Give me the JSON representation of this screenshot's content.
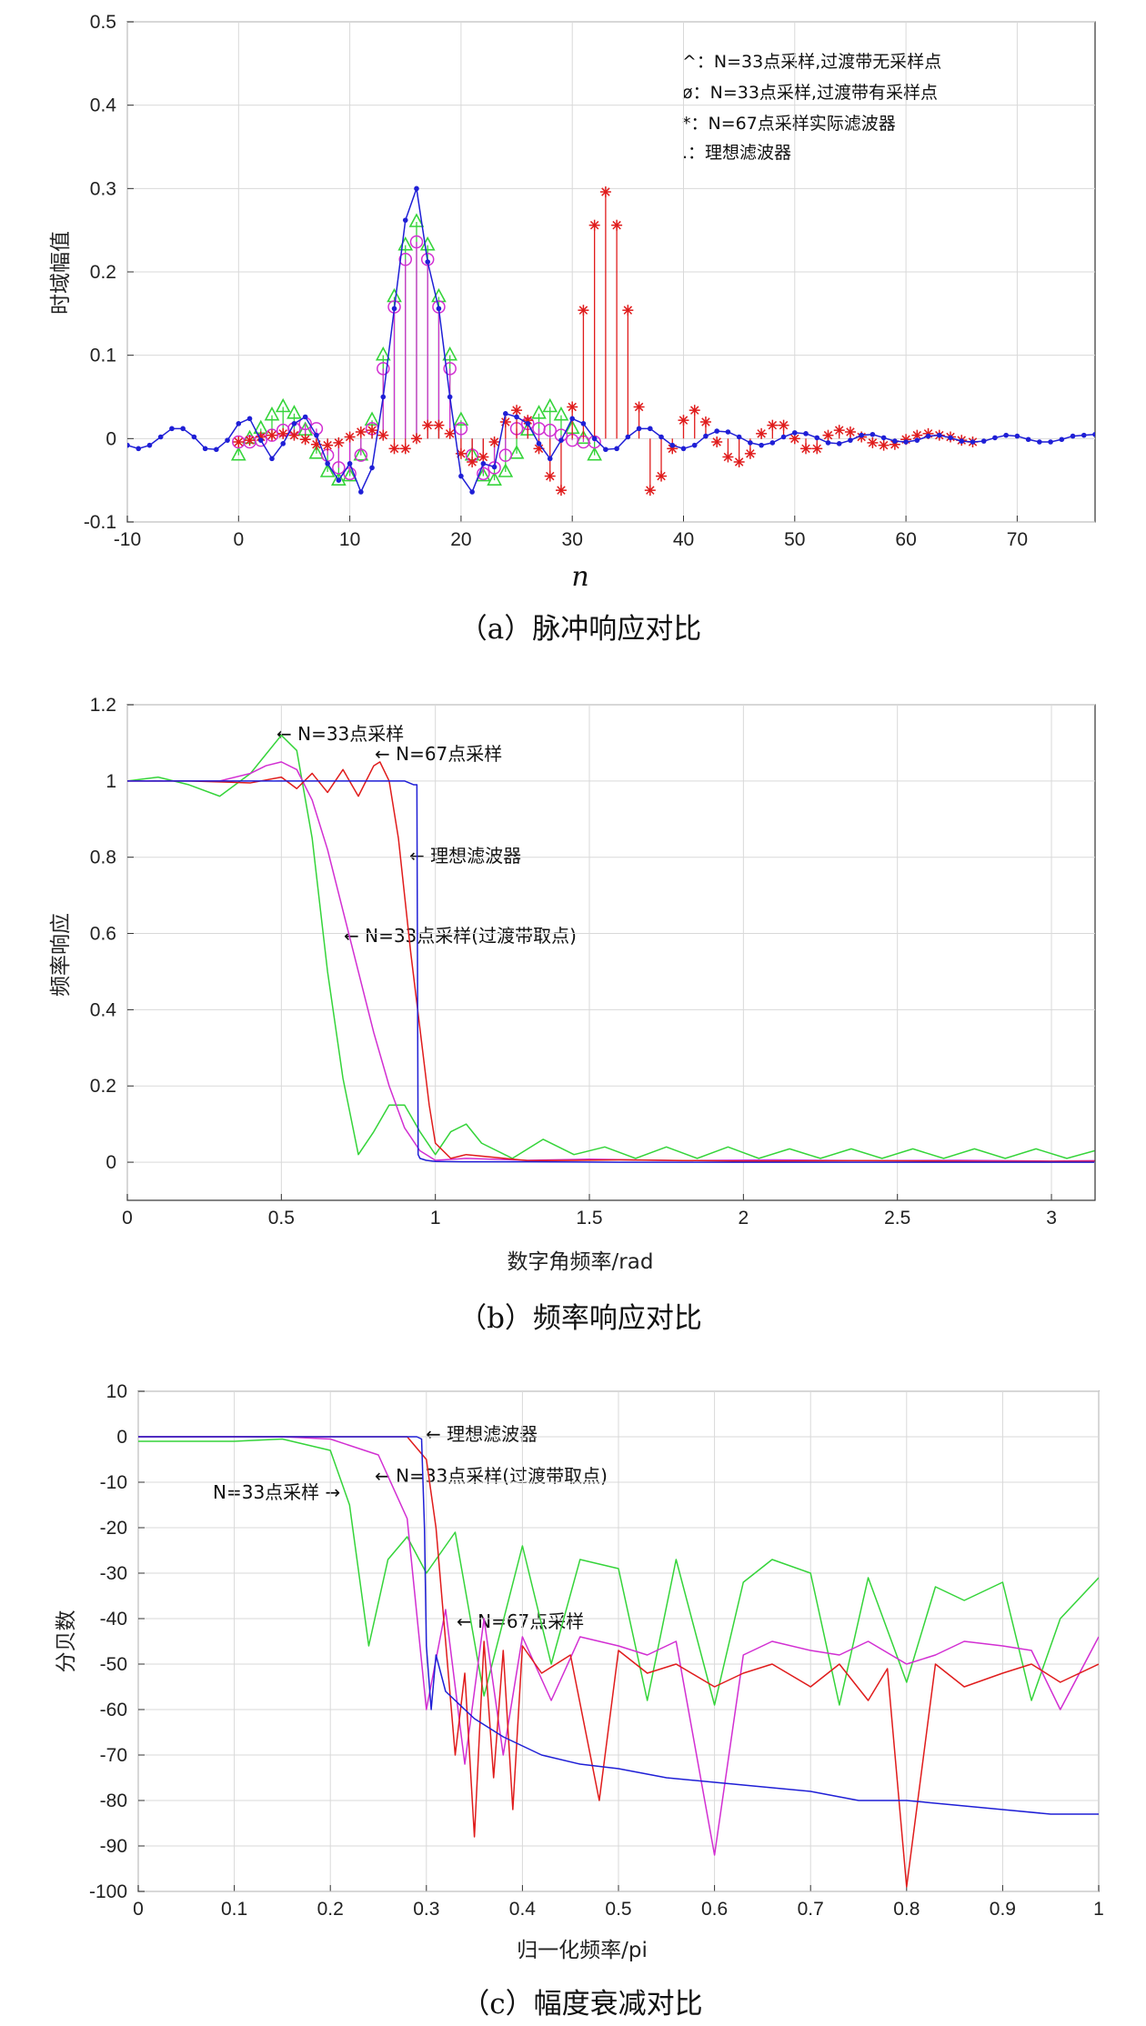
{
  "colors": {
    "blue": "#1f1fd6",
    "red": "#e01c1c",
    "green": "#35d43a",
    "magenta": "#d22fd2",
    "grid": "#d9d9d9",
    "axis": "#333333"
  },
  "chart_data": [
    {
      "type": "line",
      "panel": "a",
      "caption": "（a）脉冲响应对比",
      "xlabel": "n",
      "ylabel": "时域幅值",
      "xlim": [
        -10,
        77
      ],
      "ylim": [
        -0.1,
        0.5
      ],
      "xticks": [
        -10,
        0,
        10,
        20,
        30,
        40,
        50,
        60,
        70
      ],
      "yticks": [
        -0.1,
        0,
        0.1,
        0.2,
        0.3,
        0.4,
        0.5
      ],
      "grid": true,
      "legend_position": "top-right",
      "legend": [
        "^：N=33点采样,过渡带无采样点",
        "ø：N=33点采样,过渡带有采样点",
        "*：N=67点采样实际滤波器",
        ".：理想滤波器"
      ],
      "series": [
        {
          "marker": "dot",
          "color": "blue",
          "x": [
            -10,
            -9,
            -8,
            -7,
            -6,
            -5,
            -4,
            -3,
            -2,
            -1,
            0,
            1,
            2,
            3,
            4,
            5,
            6,
            7,
            8,
            9,
            10,
            11,
            12,
            13,
            14,
            15,
            16,
            17,
            18,
            19,
            20,
            21,
            22,
            23,
            24,
            25,
            26,
            27,
            28,
            29,
            30,
            31,
            32,
            33,
            34,
            35,
            36,
            37,
            38,
            39,
            40,
            41,
            42,
            43,
            44,
            45,
            46,
            47,
            48,
            49,
            50,
            51,
            52,
            53,
            54,
            55,
            56,
            57,
            58,
            59,
            60,
            61,
            62,
            63,
            64,
            65,
            66,
            67,
            68,
            69,
            70,
            71,
            72,
            73,
            74,
            75,
            76,
            77
          ],
          "y": [
            -0.008,
            -0.012,
            -0.008,
            0.002,
            0.012,
            0.012,
            0.002,
            -0.012,
            -0.013,
            -0.002,
            0.018,
            0.024,
            -0.002,
            -0.024,
            -0.006,
            0.018,
            0.026,
            0.004,
            -0.03,
            -0.05,
            -0.03,
            -0.064,
            -0.035,
            0.05,
            0.156,
            0.262,
            0.3,
            0.212,
            0.156,
            0.05,
            -0.045,
            -0.064,
            -0.03,
            -0.034,
            0.03,
            0.026,
            0.018,
            -0.006,
            -0.024,
            -0.002,
            0.024,
            0.018,
            0.0,
            -0.013,
            -0.012,
            0.002,
            0.012,
            0.012,
            0.002,
            -0.008,
            -0.012,
            -0.008,
            0.003,
            0.009,
            0.008,
            0.002,
            -0.005,
            -0.008,
            -0.005,
            0.002,
            0.007,
            0.006,
            0.001,
            -0.005,
            -0.006,
            -0.002,
            0.004,
            0.005,
            0.001,
            -0.003,
            -0.004,
            -0.002,
            0.003,
            0.004,
            0.001,
            -0.003,
            -0.004,
            -0.003,
            0.001,
            0.004,
            0.003,
            -0.001,
            -0.004,
            -0.004,
            -0.001,
            0.003,
            0.004,
            0.005
          ]
        },
        {
          "marker": "triangle",
          "color": "green",
          "x": [
            0,
            1,
            2,
            3,
            4,
            5,
            6,
            7,
            8,
            9,
            10,
            11,
            12,
            13,
            14,
            15,
            16,
            17,
            18,
            19,
            20,
            21,
            22,
            23,
            24,
            25,
            26,
            27,
            28,
            29,
            30,
            31,
            32
          ],
          "y": [
            -0.02,
            0.0,
            0.012,
            0.028,
            0.038,
            0.03,
            0.01,
            -0.018,
            -0.04,
            -0.05,
            -0.045,
            -0.02,
            0.022,
            0.1,
            0.17,
            0.232,
            0.26,
            0.232,
            0.17,
            0.1,
            0.022,
            -0.02,
            -0.045,
            -0.05,
            -0.04,
            -0.018,
            0.01,
            0.03,
            0.038,
            0.028,
            0.012,
            0.0,
            -0.02
          ]
        },
        {
          "marker": "circle",
          "color": "magenta",
          "x": [
            0,
            1,
            2,
            3,
            4,
            5,
            6,
            7,
            8,
            9,
            10,
            11,
            12,
            13,
            14,
            15,
            16,
            17,
            18,
            19,
            20,
            21,
            22,
            23,
            24,
            25,
            26,
            27,
            28,
            29,
            30,
            31,
            32
          ],
          "y": [
            -0.004,
            -0.004,
            -0.002,
            0.004,
            0.01,
            0.012,
            0.018,
            0.012,
            -0.02,
            -0.035,
            -0.042,
            -0.02,
            0.012,
            0.084,
            0.158,
            0.215,
            0.236,
            0.215,
            0.158,
            0.084,
            0.012,
            -0.02,
            -0.042,
            -0.035,
            -0.02,
            0.012,
            0.018,
            0.012,
            0.01,
            0.004,
            -0.002,
            -0.004,
            -0.004
          ]
        },
        {
          "marker": "star",
          "color": "red",
          "x": [
            0,
            1,
            2,
            3,
            4,
            5,
            6,
            7,
            8,
            9,
            10,
            11,
            12,
            13,
            14,
            15,
            16,
            17,
            18,
            19,
            20,
            21,
            22,
            23,
            24,
            25,
            26,
            27,
            28,
            29,
            30,
            31,
            32,
            33,
            34,
            35,
            36,
            37,
            38,
            39,
            40,
            41,
            42,
            43,
            44,
            45,
            46,
            47,
            48,
            49,
            50,
            51,
            52,
            53,
            54,
            55,
            56,
            57,
            58,
            59,
            60,
            61,
            62,
            63,
            64,
            65,
            66
          ],
          "y": [
            -0.004,
            -0.002,
            0.002,
            0.004,
            0.006,
            0.004,
            -0.001,
            -0.007,
            -0.008,
            -0.005,
            0.002,
            0.008,
            0.01,
            0.004,
            -0.012,
            -0.012,
            0.0,
            0.016,
            0.016,
            0.006,
            -0.018,
            -0.028,
            -0.022,
            -0.004,
            0.02,
            0.034,
            0.022,
            -0.012,
            -0.045,
            -0.062,
            0.038,
            0.154,
            0.256,
            0.296,
            0.256,
            0.154,
            0.038,
            -0.062,
            -0.045,
            -0.012,
            0.022,
            0.034,
            0.02,
            -0.004,
            -0.022,
            -0.028,
            -0.018,
            0.006,
            0.016,
            0.016,
            0.0,
            -0.012,
            -0.012,
            0.004,
            0.01,
            0.008,
            0.002,
            -0.005,
            -0.008,
            -0.007,
            -0.001,
            0.004,
            0.006,
            0.004,
            0.002,
            -0.002,
            -0.004
          ]
        }
      ]
    },
    {
      "type": "line",
      "panel": "b",
      "caption": "（b）频率响应对比",
      "xlabel": "数字角频率/rad",
      "ylabel": "频率响应",
      "xlim": [
        0,
        3.1416
      ],
      "ylim": [
        -0.1,
        1.2
      ],
      "xticks": [
        0,
        0.5,
        1,
        1.5,
        2,
        2.5,
        3
      ],
      "yticks": [
        0,
        0.2,
        0.4,
        0.6,
        0.8,
        1,
        1.2
      ],
      "grid": true,
      "annotations": [
        "← N=33点采样",
        "← N=67点采样",
        "← 理想滤波器",
        "← N=33点采样(过渡带取点)"
      ],
      "series": [
        {
          "name": "N=33点采样",
          "color": "green",
          "x": [
            0,
            0.1,
            0.2,
            0.3,
            0.4,
            0.45,
            0.5,
            0.55,
            0.6,
            0.65,
            0.7,
            0.75,
            0.8,
            0.85,
            0.9,
            0.95,
            1.0,
            1.05,
            1.1,
            1.15,
            1.25,
            1.35,
            1.45,
            1.55,
            1.65,
            1.75,
            1.85,
            1.95,
            2.05,
            2.15,
            2.25,
            2.35,
            2.45,
            2.55,
            2.65,
            2.75,
            2.85,
            2.95,
            3.05,
            3.14
          ],
          "y": [
            1.0,
            1.01,
            0.99,
            0.96,
            1.02,
            1.07,
            1.12,
            1.08,
            0.85,
            0.5,
            0.22,
            0.02,
            0.08,
            0.15,
            0.15,
            0.08,
            0.02,
            0.08,
            0.1,
            0.05,
            0.01,
            0.06,
            0.02,
            0.04,
            0.01,
            0.04,
            0.01,
            0.04,
            0.01,
            0.035,
            0.01,
            0.035,
            0.01,
            0.035,
            0.01,
            0.035,
            0.01,
            0.035,
            0.01,
            0.03
          ]
        },
        {
          "name": "N=33点采样(过渡带取点)",
          "color": "magenta",
          "x": [
            0,
            0.2,
            0.3,
            0.4,
            0.45,
            0.5,
            0.55,
            0.6,
            0.65,
            0.7,
            0.75,
            0.8,
            0.85,
            0.9,
            0.95,
            1.0,
            1.1,
            1.3,
            1.5,
            1.8,
            2.1,
            2.4,
            2.7,
            3.0,
            3.14
          ],
          "y": [
            1.0,
            1.0,
            1.0,
            1.02,
            1.04,
            1.05,
            1.03,
            0.95,
            0.82,
            0.66,
            0.5,
            0.34,
            0.2,
            0.09,
            0.03,
            0.005,
            0.01,
            0.005,
            0.008,
            0.004,
            0.006,
            0.004,
            0.005,
            0.003,
            0.004
          ]
        },
        {
          "name": "N=67点采样",
          "color": "red",
          "x": [
            0,
            0.2,
            0.4,
            0.5,
            0.55,
            0.6,
            0.65,
            0.7,
            0.75,
            0.8,
            0.82,
            0.85,
            0.88,
            0.9,
            0.92,
            0.95,
            0.98,
            1.0,
            1.05,
            1.1,
            1.3,
            1.6,
            2.0,
            2.4,
            2.8,
            3.14
          ],
          "y": [
            1.0,
            1.0,
            0.995,
            1.01,
            0.98,
            1.02,
            0.97,
            1.03,
            0.96,
            1.04,
            1.05,
            1.0,
            0.85,
            0.7,
            0.55,
            0.35,
            0.15,
            0.05,
            0.01,
            0.02,
            0.004,
            0.006,
            0.003,
            0.004,
            0.002,
            0.002
          ]
        },
        {
          "name": "理想滤波器",
          "color": "blue",
          "x": [
            0,
            0.3,
            0.6,
            0.9,
            0.93,
            0.94,
            0.942,
            0.944,
            0.95,
            0.97,
            1.0,
            1.1,
            1.3,
            1.6,
            2.0,
            2.4,
            2.8,
            3.14
          ],
          "y": [
            1.0,
            1.0,
            1.0,
            1.0,
            0.99,
            0.99,
            0.5,
            0.02,
            0.01,
            0.005,
            0.002,
            0.001,
            0.001,
            0.0,
            0.0,
            0.0,
            0.0,
            0.0
          ]
        }
      ]
    },
    {
      "type": "line",
      "panel": "c",
      "caption": "（c）幅度衰减对比",
      "xlabel": "归一化频率/pi",
      "ylabel": "分贝数",
      "xlim": [
        0,
        1
      ],
      "ylim": [
        -100,
        10
      ],
      "xticks": [
        0,
        0.1,
        0.2,
        0.3,
        0.4,
        0.5,
        0.6,
        0.7,
        0.8,
        0.9,
        1
      ],
      "yticks": [
        10,
        0,
        -10,
        -20,
        -30,
        -40,
        -50,
        -60,
        -70,
        -80,
        -90,
        -100
      ],
      "grid": true,
      "annotations": [
        "← 理想滤波器",
        "← N=33点采样(过渡带取点)",
        "N=33点采样 →",
        "← N=67点采样"
      ],
      "series": [
        {
          "name": "N=33点采样",
          "color": "green",
          "x": [
            0,
            0.1,
            0.15,
            0.2,
            0.22,
            0.24,
            0.26,
            0.28,
            0.3,
            0.33,
            0.36,
            0.4,
            0.43,
            0.46,
            0.5,
            0.53,
            0.56,
            0.6,
            0.63,
            0.66,
            0.7,
            0.73,
            0.76,
            0.8,
            0.83,
            0.86,
            0.9,
            0.93,
            0.96,
            1.0
          ],
          "y": [
            -1,
            -1,
            -0.5,
            -3,
            -15,
            -46,
            -27,
            -22,
            -30,
            -21,
            -57,
            -24,
            -50,
            -27,
            -29,
            -58,
            -27,
            -59,
            -32,
            -27,
            -30,
            -59,
            -31,
            -54,
            -33,
            -36,
            -32,
            -58,
            -40,
            -31
          ]
        },
        {
          "name": "N=33点采样(过渡带取点)",
          "color": "magenta",
          "x": [
            0,
            0.15,
            0.2,
            0.25,
            0.28,
            0.3,
            0.32,
            0.34,
            0.36,
            0.38,
            0.4,
            0.43,
            0.46,
            0.5,
            0.53,
            0.56,
            0.6,
            0.63,
            0.66,
            0.7,
            0.73,
            0.76,
            0.8,
            0.83,
            0.86,
            0.9,
            0.93,
            0.96,
            1.0
          ],
          "y": [
            0,
            0,
            -0.5,
            -4,
            -18,
            -60,
            -38,
            -72,
            -40,
            -70,
            -44,
            -58,
            -44,
            -46,
            -48,
            -45,
            -92,
            -48,
            -45,
            -47,
            -48,
            -45,
            -50,
            -48,
            -45,
            -46,
            -47,
            -60,
            -44
          ]
        },
        {
          "name": "N=67点采样",
          "color": "red",
          "x": [
            0,
            0.2,
            0.28,
            0.3,
            0.31,
            0.32,
            0.33,
            0.34,
            0.35,
            0.36,
            0.37,
            0.38,
            0.39,
            0.4,
            0.42,
            0.45,
            0.48,
            0.5,
            0.53,
            0.56,
            0.6,
            0.63,
            0.66,
            0.7,
            0.73,
            0.76,
            0.78,
            0.8,
            0.83,
            0.86,
            0.9,
            0.93,
            0.96,
            1.0
          ],
          "y": [
            0,
            0,
            0,
            -5,
            -20,
            -45,
            -70,
            -52,
            -88,
            -45,
            -75,
            -47,
            -82,
            -46,
            -52,
            -48,
            -80,
            -47,
            -52,
            -50,
            -55,
            -52,
            -50,
            -55,
            -50,
            -58,
            -51,
            -99,
            -50,
            -55,
            -52,
            -50,
            -54,
            -50
          ]
        },
        {
          "name": "理想滤波器",
          "color": "blue",
          "x": [
            0,
            0.2,
            0.29,
            0.295,
            0.298,
            0.3,
            0.305,
            0.31,
            0.32,
            0.35,
            0.38,
            0.42,
            0.46,
            0.5,
            0.55,
            0.6,
            0.65,
            0.7,
            0.75,
            0.8,
            0.85,
            0.9,
            0.95,
            1.0
          ],
          "y": [
            0,
            0,
            0,
            -0.5,
            -20,
            -46,
            -60,
            -48,
            -56,
            -62,
            -66,
            -70,
            -72,
            -73,
            -75,
            -76,
            -77,
            -78,
            -80,
            -80,
            -81,
            -82,
            -83,
            -83
          ]
        }
      ]
    }
  ]
}
